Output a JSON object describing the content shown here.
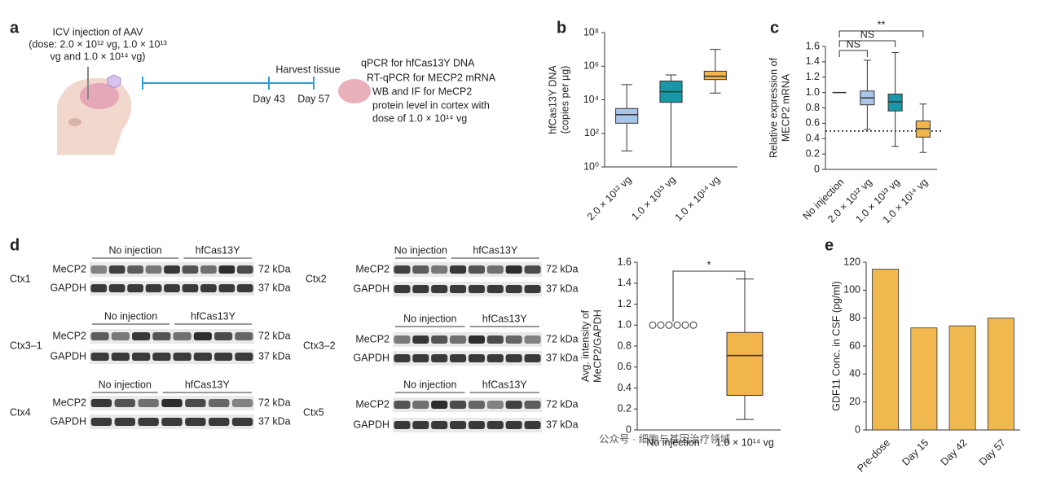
{
  "panel_labels": [
    "a",
    "b",
    "c",
    "d",
    "e"
  ],
  "schematic": {
    "injection": [
      "ICV injection of AAV",
      "(dose: 2.0 × 10¹² vg, 1.0 × 10¹³",
      "vg and 1.0 × 10¹⁴ vg)"
    ],
    "harvest": "Harvest tissue",
    "days": [
      "Day 43",
      "Day 57"
    ],
    "assays": [
      "qPCR for hfCas13Y DNA",
      "RT-qPCR for MECP2 mRNA",
      "WB and IF for MeCP2",
      "protein level in cortex with",
      "dose of 1.0 × 10¹⁴ vg"
    ]
  },
  "blots": [
    {
      "region": "Ctx1",
      "groups": [
        "No injection",
        "hfCas13Y"
      ],
      "proteins": [
        "MeCP2",
        "GAPDH"
      ],
      "sizes": [
        "72 kDa",
        "37 kDa"
      ]
    },
    {
      "region": "Ctx2",
      "groups": [
        "No injection",
        "hfCas13Y"
      ],
      "proteins": [
        "MeCP2",
        "GAPDH"
      ],
      "sizes": [
        "72 kDa",
        "37 kDa"
      ]
    },
    {
      "region": "Ctx3–1",
      "groups": [
        "No injection",
        "hfCas13Y"
      ],
      "proteins": [
        "MeCP2",
        "GAPDH"
      ],
      "sizes": [
        "72 kDa",
        "37 kDa"
      ]
    },
    {
      "region": "Ctx3–2",
      "groups": [
        "No injection",
        "hfCas13Y"
      ],
      "proteins": [
        "MeCP2",
        "GAPDH"
      ],
      "sizes": [
        "72 kDa",
        "37 kDa"
      ]
    },
    {
      "region": "Ctx4",
      "groups": [
        "No injection",
        "hfCas13Y"
      ],
      "proteins": [
        "MeCP2",
        "GAPDH"
      ],
      "sizes": [
        "72 kDa",
        "37 kDa"
      ]
    },
    {
      "region": "Ctx5",
      "groups": [
        "No injection",
        "hfCas13Y"
      ],
      "proteins": [
        "MeCP2",
        "GAPDH"
      ],
      "sizes": [
        "72 kDa",
        "37 kDa"
      ]
    }
  ],
  "chart_data": [
    {
      "type": "box",
      "ylabel": [
        "hfCas13Y DNA",
        "(copies per µg)"
      ],
      "log_scale": true,
      "categories": [
        "2.0 × 10¹² vg",
        "1.0 × 10¹³ vg",
        "1.0 × 10¹⁴ vg"
      ],
      "boxes": [
        {
          "min": 9,
          "q1": 400,
          "median": 1300,
          "q3": 3000,
          "max": 80000,
          "color": "#a9c6e8"
        },
        {
          "min": 1,
          "q1": 7000,
          "median": 30000,
          "q3": 130000,
          "max": 300000,
          "color": "#1997a6"
        },
        {
          "min": 25000,
          "q1": 160000,
          "median": 250000,
          "q3": 500000,
          "max": 10000000,
          "color": "#f2b54c"
        }
      ],
      "ylim": [
        1,
        100000000
      ],
      "yticks": [
        {
          "value": 1,
          "label": "10⁰"
        },
        {
          "value": 100,
          "label": "10²"
        },
        {
          "value": 10000,
          "label": "10⁴"
        },
        {
          "value": 1000000,
          "label": "10⁶"
        },
        {
          "value": 100000000,
          "label": "10⁸"
        }
      ]
    },
    {
      "type": "box",
      "ylabel": [
        "Relative expression of",
        "MECP2 mRNA"
      ],
      "categories": [
        "No injection",
        "2.0 × 10¹² vg",
        "1.0 × 10¹³ vg",
        "1.0 × 10¹⁴ vg"
      ],
      "boxes": [
        {
          "median": 1
        },
        {
          "min": 0.52,
          "q1": 0.84,
          "median": 0.93,
          "q3": 1.02,
          "max": 1.42,
          "color": "#a9c6e8"
        },
        {
          "min": 0.3,
          "q1": 0.76,
          "median": 0.88,
          "q3": 0.98,
          "max": 1.52,
          "color": "#1997a6"
        },
        {
          "min": 0.22,
          "q1": 0.42,
          "median": 0.53,
          "q3": 0.63,
          "max": 0.85,
          "color": "#f2b54c"
        }
      ],
      "reference_line": 0.5,
      "significance": [
        "**",
        "NS",
        "NS"
      ],
      "ylim": [
        0,
        1.6
      ],
      "yticks": [
        0,
        0.2,
        0.4,
        0.6,
        0.8,
        {
          "value": 1,
          "label": "1.0"
        },
        1.2,
        1.4,
        1.6
      ]
    },
    {
      "type": "box",
      "ylabel": [
        "Avg. intensity of",
        "MeCP2/GAPDH"
      ],
      "categories": [
        "No injection",
        "1.0 × 10¹⁴ vg"
      ],
      "boxes": [
        {
          "points": [
            1,
            1,
            1,
            1,
            1,
            1
          ]
        },
        {
          "min": 0.1,
          "q1": 0.33,
          "median": 0.71,
          "q3": 0.93,
          "max": 1.44,
          "color": "#f2b54c"
        }
      ],
      "significance": [
        "*"
      ],
      "ylim": [
        0,
        1.6
      ],
      "yticks": [
        0,
        0.2,
        0.4,
        0.6,
        0.8,
        {
          "value": 1,
          "label": "1.0"
        },
        1.2,
        1.4,
        1.6
      ]
    },
    {
      "type": "bar",
      "ylabel": [
        "GDF11 Conc. in CSF (pg/ml)"
      ],
      "categories": [
        "Pre-dose",
        "Day 15",
        "Day 42",
        "Day 57"
      ],
      "values": [
        115,
        73,
        74.5,
        80
      ],
      "color": "#f0b84e",
      "ylim": [
        0,
        120
      ],
      "yticks": [
        0,
        20,
        40,
        60,
        80,
        100,
        120
      ]
    }
  ],
  "watermark": "公众号 · 细胞与基因治疗领域"
}
